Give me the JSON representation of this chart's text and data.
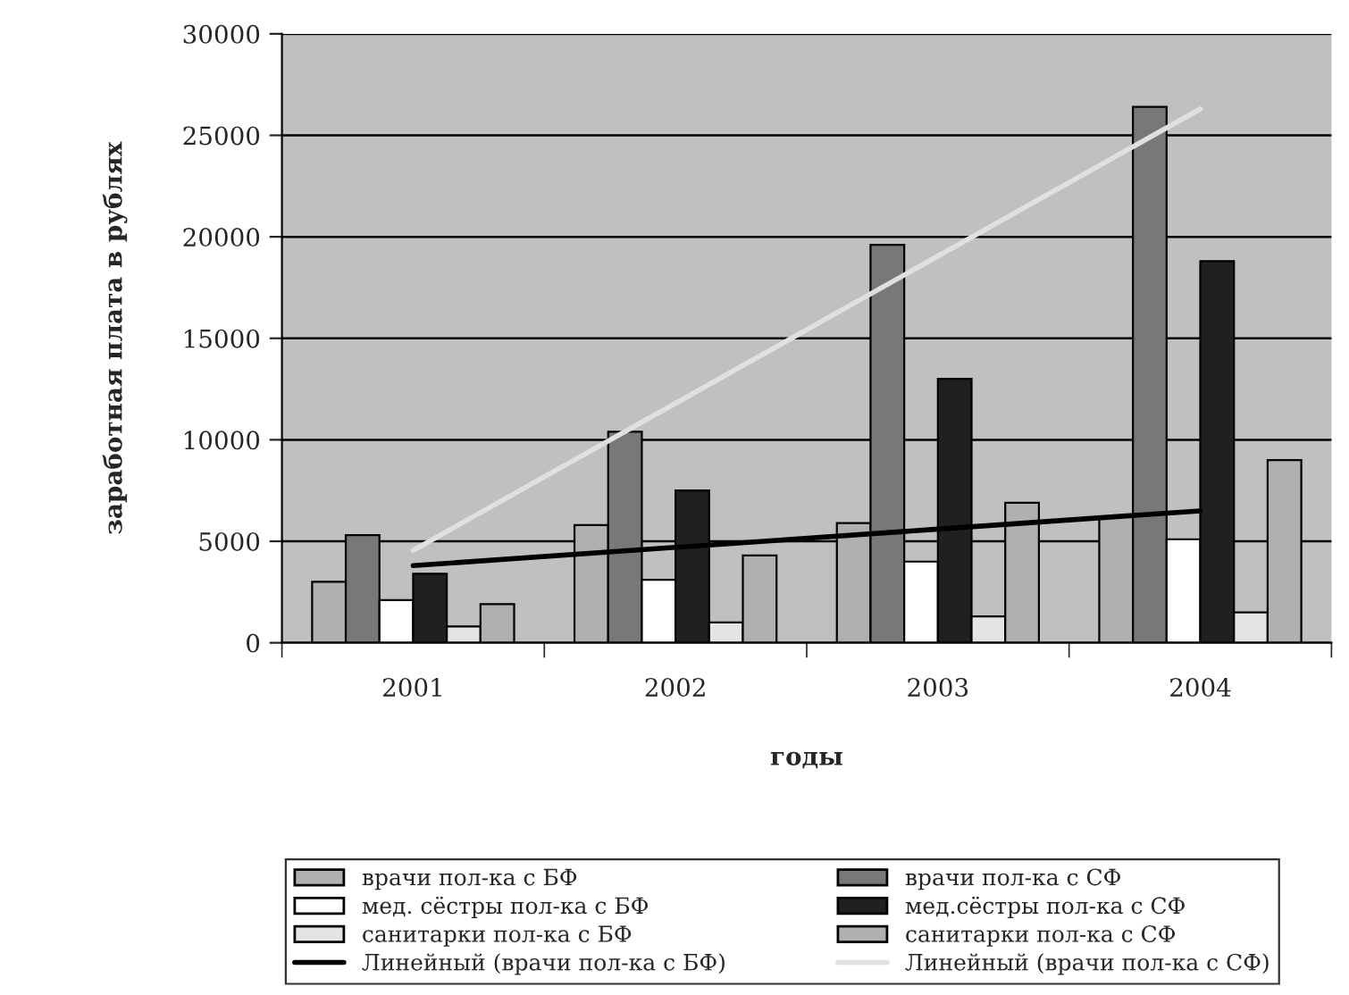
{
  "chart_data": {
    "type": "bar",
    "xlabel": "годы",
    "ylabel": "заработная плата в рублях",
    "categories": [
      "2001",
      "2002",
      "2003",
      "2004"
    ],
    "ylim": [
      0,
      30000
    ],
    "yticks": [
      0,
      5000,
      10000,
      15000,
      20000,
      25000,
      30000
    ],
    "grid": "y",
    "legend": "bottom",
    "series": [
      {
        "name": "врачи пол-ка с БФ",
        "color": "#b0b0b0",
        "values": [
          3000,
          5800,
          5900,
          6200
        ]
      },
      {
        "name": "врачи пол-ка с СФ",
        "color": "#787878",
        "values": [
          5300,
          10400,
          19600,
          26400
        ]
      },
      {
        "name": "мед. сёстры пол-ка с БФ",
        "color": "#ffffff",
        "values": [
          2100,
          3100,
          4000,
          5100
        ]
      },
      {
        "name": "мед.сёстры пол-ка с СФ",
        "color": "#202020",
        "values": [
          3400,
          7500,
          13000,
          18800
        ]
      },
      {
        "name": "санитарки пол-ка с БФ",
        "color": "#e4e4e4",
        "values": [
          800,
          1000,
          1300,
          1500
        ]
      },
      {
        "name": "санитарки пол-ка с СФ",
        "color": "#b0b0b0",
        "values": [
          1900,
          4300,
          6900,
          9000
        ]
      },
      {
        "name": "Линейный (врачи пол-ка с БФ)",
        "type": "line",
        "color": "#000000",
        "values": [
          3800,
          4700,
          5600,
          6500
        ]
      },
      {
        "name": "Линейный (врачи пол-ка с СФ)",
        "type": "line",
        "color": "#e0e0e0",
        "values": [
          4550,
          11800,
          19050,
          26300
        ]
      }
    ]
  }
}
